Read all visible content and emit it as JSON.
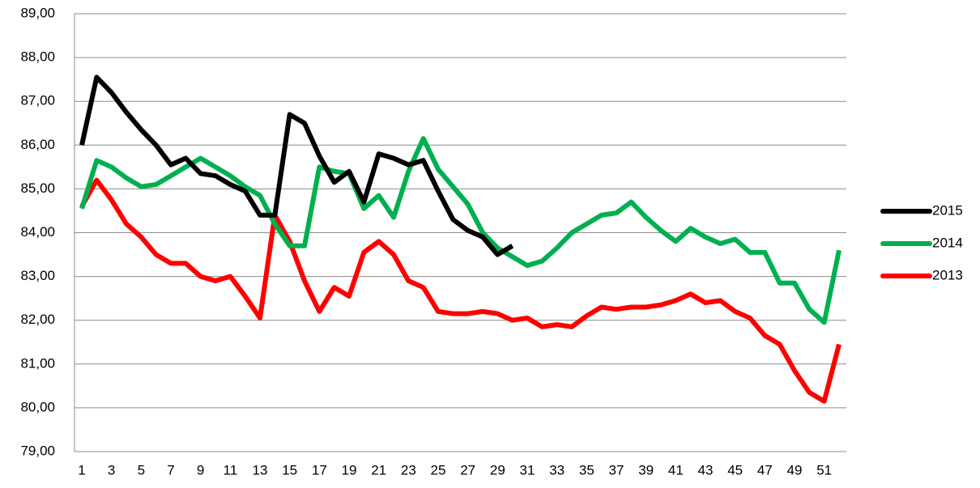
{
  "chart_data": {
    "type": "line",
    "categories": [
      "1",
      null,
      "3",
      null,
      "5",
      null,
      "7",
      null,
      "9",
      null,
      "11",
      null,
      "13",
      null,
      "15",
      null,
      "17",
      null,
      "19",
      null,
      "21",
      null,
      "23",
      null,
      "25",
      null,
      "27",
      null,
      "29",
      null,
      "31",
      null,
      "33",
      null,
      "35",
      null,
      "37",
      null,
      "39",
      null,
      "41",
      null,
      "43",
      null,
      "45",
      null,
      "47",
      null,
      "49",
      null,
      "51",
      null
    ],
    "series": [
      {
        "name": "2015",
        "color": "#000000",
        "values": [
          86.0,
          87.55,
          87.2,
          86.75,
          86.35,
          86.0,
          85.55,
          85.7,
          85.35,
          85.3,
          85.1,
          84.95,
          84.4,
          84.4,
          86.7,
          86.5,
          85.75,
          85.15,
          85.4,
          84.7,
          85.8,
          85.7,
          85.55,
          85.65,
          84.95,
          84.3,
          84.05,
          83.9,
          83.5,
          83.7,
          null,
          null,
          null,
          null,
          null,
          null,
          null,
          null,
          null,
          null,
          null,
          null,
          null,
          null,
          null,
          null,
          null,
          null,
          null,
          null,
          null,
          null
        ]
      },
      {
        "name": "2014",
        "color": "#00b050",
        "values": [
          84.55,
          85.65,
          85.5,
          85.25,
          85.05,
          85.1,
          85.3,
          85.5,
          85.7,
          85.5,
          85.3,
          85.05,
          84.85,
          84.2,
          83.7,
          83.7,
          85.5,
          85.4,
          85.35,
          84.55,
          84.85,
          84.35,
          85.4,
          86.15,
          85.45,
          85.05,
          84.65,
          84.0,
          83.65,
          83.45,
          83.25,
          83.35,
          83.65,
          84.0,
          84.2,
          84.4,
          84.45,
          84.7,
          84.35,
          84.05,
          83.8,
          84.1,
          83.9,
          83.75,
          83.85,
          83.55,
          83.55,
          82.85,
          82.85,
          82.25,
          81.95,
          83.6
        ]
      },
      {
        "name": "2013",
        "color": "#ff0000",
        "values": [
          84.6,
          85.2,
          84.75,
          84.2,
          83.9,
          83.5,
          83.3,
          83.3,
          83.0,
          82.9,
          83.0,
          82.55,
          82.05,
          84.4,
          83.8,
          82.9,
          82.2,
          82.75,
          82.55,
          83.55,
          83.8,
          83.5,
          82.9,
          82.75,
          82.2,
          82.15,
          82.15,
          82.2,
          82.15,
          82.0,
          82.05,
          81.85,
          81.9,
          81.85,
          82.1,
          82.3,
          82.25,
          82.3,
          82.3,
          82.35,
          82.45,
          82.6,
          82.4,
          82.45,
          82.2,
          82.05,
          81.65,
          81.45,
          80.85,
          80.35,
          80.15,
          81.45
        ]
      }
    ],
    "ylim": [
      79,
      89
    ],
    "yticks": [
      {
        "value": 79,
        "label": "79,00"
      },
      {
        "value": 80,
        "label": "80,00"
      },
      {
        "value": 81,
        "label": "81,00"
      },
      {
        "value": 82,
        "label": "82,00"
      },
      {
        "value": 83,
        "label": "83,00"
      },
      {
        "value": 84,
        "label": "84,00"
      },
      {
        "value": 85,
        "label": "85,00"
      },
      {
        "value": 86,
        "label": "86,00"
      },
      {
        "value": 87,
        "label": "87,00"
      },
      {
        "value": 88,
        "label": "88,00"
      },
      {
        "value": 89,
        "label": "89,00"
      }
    ],
    "grid": true,
    "legend": "right"
  }
}
